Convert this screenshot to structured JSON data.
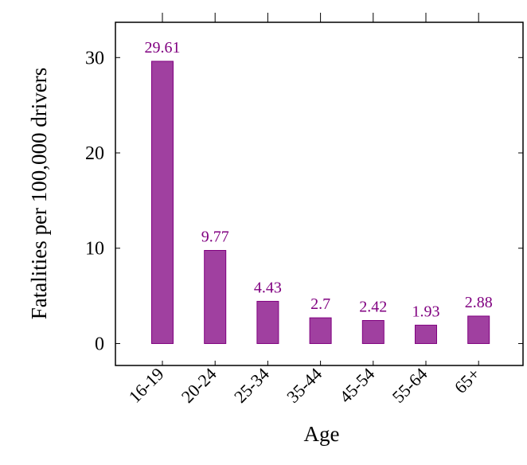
{
  "chart_data": {
    "type": "bar",
    "title": "",
    "xlabel": "Age",
    "ylabel": "Fatalities per 100,000 drivers",
    "categories": [
      "16-19",
      "20-24",
      "25-34",
      "35-44",
      "45-54",
      "55-64",
      "65+"
    ],
    "values": [
      29.61,
      9.77,
      4.43,
      2.7,
      2.42,
      1.93,
      2.88
    ],
    "value_labels": [
      "29.61",
      "9.77",
      "4.43",
      "2.7",
      "2.42",
      "1.93",
      "2.88"
    ],
    "ylim": [
      -2.3,
      33.7
    ],
    "yticks": [
      0,
      10,
      20,
      30
    ],
    "ytick_labels": [
      "0",
      "10",
      "20",
      "30"
    ],
    "grid": false,
    "legend": "none",
    "colors": {
      "bar_fill": "#a040a0",
      "bar_stroke": "#800080",
      "label": "#800080",
      "axis": "#000000"
    }
  }
}
